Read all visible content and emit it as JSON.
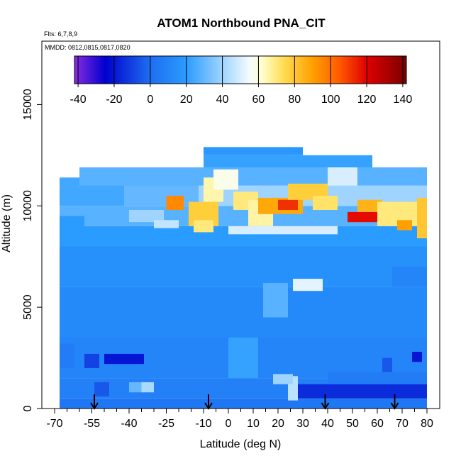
{
  "chart_data": {
    "type": "heatmap",
    "title": "ATOM1 Northbound PNA_CIT",
    "annotations": {
      "flights": "Flts: 6,7,8,9",
      "dates": "MMDD: 0812,0815,0817,0820"
    },
    "xlabel": "Latitude (deg N)",
    "ylabel": "Altitude (m)",
    "xlim": [
      -70,
      80
    ],
    "ylim": [
      0,
      17500
    ],
    "x_ticks": [
      {
        "v": -70,
        "label": "-70"
      },
      {
        "v": -55,
        "label": "-55"
      },
      {
        "v": -40,
        "label": "-40"
      },
      {
        "v": -25,
        "label": "-25"
      },
      {
        "v": -10,
        "label": "-10"
      },
      {
        "v": 0,
        "label": "0"
      },
      {
        "v": 10,
        "label": "10"
      },
      {
        "v": 20,
        "label": "20"
      },
      {
        "v": 30,
        "label": "30"
      },
      {
        "v": 40,
        "label": "40"
      },
      {
        "v": 50,
        "label": "50"
      },
      {
        "v": 60,
        "label": "60"
      },
      {
        "v": 70,
        "label": "70"
      },
      {
        "v": 80,
        "label": "80"
      }
    ],
    "x_minor_ticks": [
      -65,
      -60,
      -50,
      -45,
      -35,
      -30,
      -20,
      -15,
      -5,
      5,
      15,
      25,
      35,
      45,
      55,
      65,
      75
    ],
    "y_ticks": [
      {
        "v": 0,
        "label": "0"
      },
      {
        "v": 5000,
        "label": "5000"
      },
      {
        "v": 10000,
        "label": "10000"
      },
      {
        "v": 15000,
        "label": "15000"
      }
    ],
    "colorbar": {
      "min": -42,
      "max": 142,
      "ticks": [
        {
          "v": -40,
          "label": "-40"
        },
        {
          "v": -20,
          "label": "-20"
        },
        {
          "v": 0,
          "label": "0"
        },
        {
          "v": 20,
          "label": "20"
        },
        {
          "v": 40,
          "label": "40"
        },
        {
          "v": 60,
          "label": "60"
        },
        {
          "v": 80,
          "label": "80"
        },
        {
          "v": 100,
          "label": "100"
        },
        {
          "v": 120,
          "label": "120"
        },
        {
          "v": 140,
          "label": "140"
        }
      ],
      "stops": [
        {
          "v": -42,
          "color": "#8a2be2"
        },
        {
          "v": -25,
          "color": "#0000cd"
        },
        {
          "v": 0,
          "color": "#1e6ef0"
        },
        {
          "v": 20,
          "color": "#2a9cff"
        },
        {
          "v": 40,
          "color": "#9fd4ff"
        },
        {
          "v": 55,
          "color": "#f4fbff"
        },
        {
          "v": 62,
          "color": "#ffffcc"
        },
        {
          "v": 75,
          "color": "#ffd94a"
        },
        {
          "v": 90,
          "color": "#ffa000"
        },
        {
          "v": 105,
          "color": "#ff5a00"
        },
        {
          "v": 120,
          "color": "#e00000"
        },
        {
          "v": 142,
          "color": "#7a0000"
        }
      ]
    },
    "flight_markers_lat": [
      -54,
      -8,
      39,
      67
    ],
    "grid": false,
    "cells": [
      {
        "x0": -68,
        "x1": 80,
        "y0": 0,
        "y1": 500,
        "v": 4
      },
      {
        "x0": -68,
        "x1": 80,
        "y0": 500,
        "y1": 1500,
        "v": 8
      },
      {
        "x0": -68,
        "x1": 80,
        "y0": 1500,
        "y1": 3500,
        "v": 10
      },
      {
        "x0": -68,
        "x1": 80,
        "y0": 3500,
        "y1": 6000,
        "v": 12
      },
      {
        "x0": -68,
        "x1": 80,
        "y0": 6000,
        "y1": 8000,
        "v": 15
      },
      {
        "x0": -68,
        "x1": 80,
        "y0": 8000,
        "y1": 9000,
        "v": 20
      },
      {
        "x0": -68,
        "x1": 80,
        "y0": 9000,
        "y1": 10000,
        "v": 28
      },
      {
        "x0": -68,
        "x1": -42,
        "y0": 10000,
        "y1": 11400,
        "v": 24
      },
      {
        "x0": -42,
        "x1": -12,
        "y0": 10000,
        "y1": 11300,
        "v": 30
      },
      {
        "x0": -12,
        "x1": 80,
        "y0": 10000,
        "y1": 11000,
        "v": 40
      },
      {
        "x0": -60,
        "x1": 80,
        "y0": 11000,
        "y1": 11900,
        "v": 28
      },
      {
        "x0": -10,
        "x1": 58,
        "y0": 11900,
        "y1": 12500,
        "v": 22
      },
      {
        "x0": -10,
        "x1": 30,
        "y0": 12500,
        "y1": 12900,
        "v": 18
      },
      {
        "x0": -25,
        "x1": -18,
        "y0": 9800,
        "y1": 10500,
        "v": 95
      },
      {
        "x0": -16,
        "x1": -4,
        "y0": 9000,
        "y1": 10200,
        "v": 78
      },
      {
        "x0": -14,
        "x1": -6,
        "y0": 8700,
        "y1": 9300,
        "v": 70
      },
      {
        "x0": -10,
        "x1": -2,
        "y0": 10200,
        "y1": 11400,
        "v": 65
      },
      {
        "x0": -6,
        "x1": 4,
        "y0": 10800,
        "y1": 11800,
        "v": 58
      },
      {
        "x0": 2,
        "x1": 12,
        "y0": 9800,
        "y1": 10700,
        "v": 70
      },
      {
        "x0": 8,
        "x1": 18,
        "y0": 9000,
        "y1": 10300,
        "v": 66
      },
      {
        "x0": 12,
        "x1": 30,
        "y0": 9600,
        "y1": 10400,
        "v": 88
      },
      {
        "x0": 20,
        "x1": 28,
        "y0": 9800,
        "y1": 10300,
        "v": 112
      },
      {
        "x0": 24,
        "x1": 40,
        "y0": 10300,
        "y1": 11100,
        "v": 78
      },
      {
        "x0": 34,
        "x1": 44,
        "y0": 9800,
        "y1": 10500,
        "v": 72
      },
      {
        "x0": 40,
        "x1": 52,
        "y0": 11000,
        "y1": 11900,
        "v": 50
      },
      {
        "x0": 48,
        "x1": 60,
        "y0": 9200,
        "y1": 9700,
        "v": 118
      },
      {
        "x0": 52,
        "x1": 62,
        "y0": 9700,
        "y1": 10300,
        "v": 85
      },
      {
        "x0": 60,
        "x1": 80,
        "y0": 9000,
        "y1": 10200,
        "v": 70
      },
      {
        "x0": 68,
        "x1": 74,
        "y0": 8800,
        "y1": 9300,
        "v": 90
      },
      {
        "x0": 76,
        "x1": 80,
        "y0": 8400,
        "y1": 10400,
        "v": 80
      },
      {
        "x0": -40,
        "x1": -26,
        "y0": 9200,
        "y1": 9800,
        "v": 40
      },
      {
        "x0": -30,
        "x1": -20,
        "y0": 8900,
        "y1": 9300,
        "v": 46
      },
      {
        "x0": 0,
        "x1": 44,
        "y0": 8600,
        "y1": 9000,
        "v": 50
      },
      {
        "x0": 26,
        "x1": 38,
        "y0": 5800,
        "y1": 6400,
        "v": 52
      },
      {
        "x0": 14,
        "x1": 24,
        "y0": 4500,
        "y1": 6200,
        "v": 28
      },
      {
        "x0": -68,
        "x1": -58,
        "y0": 8000,
        "y1": 9500,
        "v": 20
      },
      {
        "x0": -68,
        "x1": -62,
        "y0": 2000,
        "y1": 3200,
        "v": 6
      },
      {
        "x0": -58,
        "x1": -52,
        "y0": 2000,
        "y1": 2700,
        "v": -10
      },
      {
        "x0": -50,
        "x1": -34,
        "y0": 2200,
        "y1": 2700,
        "v": -20
      },
      {
        "x0": -54,
        "x1": -48,
        "y0": 600,
        "y1": 1300,
        "v": -5
      },
      {
        "x0": -40,
        "x1": -34,
        "y0": 800,
        "y1": 1300,
        "v": 30
      },
      {
        "x0": -35,
        "x1": -30,
        "y0": 800,
        "y1": 1300,
        "v": 42
      },
      {
        "x0": 26,
        "x1": 80,
        "y0": 500,
        "y1": 1200,
        "v": -15
      },
      {
        "x0": 40,
        "x1": 80,
        "y0": 1200,
        "y1": 1800,
        "v": 6
      },
      {
        "x0": 24,
        "x1": 28,
        "y0": 400,
        "y1": 1600,
        "v": 45
      },
      {
        "x0": 18,
        "x1": 26,
        "y0": 1200,
        "y1": 1700,
        "v": 40
      },
      {
        "x0": 62,
        "x1": 66,
        "y0": 1800,
        "y1": 2500,
        "v": -5
      },
      {
        "x0": 74,
        "x1": 78,
        "y0": 2300,
        "y1": 2800,
        "v": -20
      },
      {
        "x0": 0,
        "x1": 12,
        "y0": 1500,
        "y1": 3500,
        "v": 22
      },
      {
        "x0": 66,
        "x1": 80,
        "y0": 6000,
        "y1": 7000,
        "v": 10
      }
    ]
  }
}
